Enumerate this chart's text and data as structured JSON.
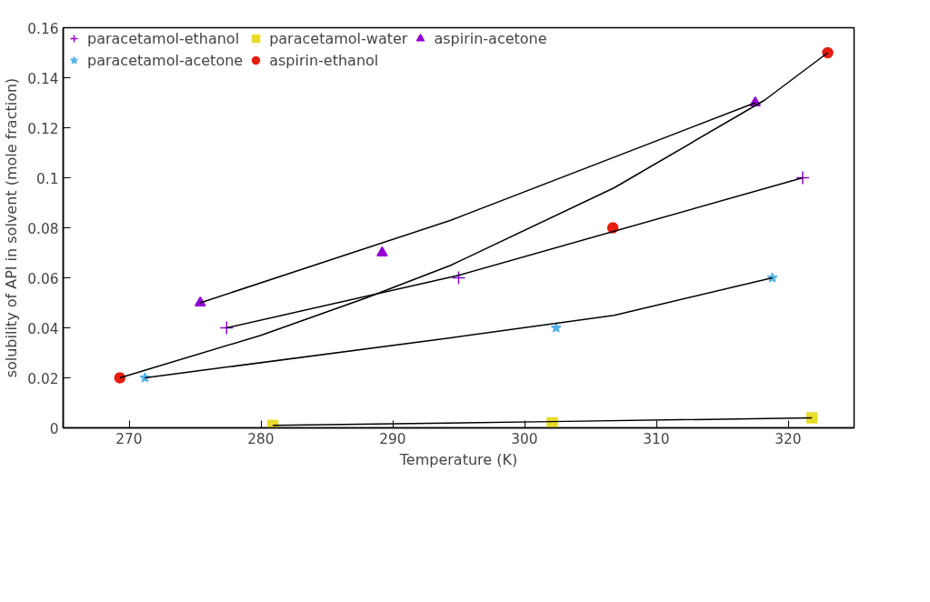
{
  "chart_data": {
    "type": "scatter",
    "xlabel": "Temperature (K)",
    "ylabel": "solubility of API in solvent (mole fraction)",
    "xlim": [
      265,
      325
    ],
    "xticks": [
      270,
      280,
      290,
      300,
      310,
      320
    ],
    "ylim": [
      0,
      0.16
    ],
    "yticks": [
      0,
      0.02,
      0.04,
      0.06,
      0.08,
      0.1,
      0.12,
      0.14,
      0.16
    ],
    "grid": false,
    "legend": "top left",
    "series": [
      {
        "name": "paracetamol-ethanol",
        "color": "#9400d3",
        "marker": "cross",
        "x": [
          277.4,
          295.0,
          321.1
        ],
        "values": [
          0.04,
          0.06,
          0.1
        ]
      },
      {
        "name": "paracetamol-acetone",
        "color": "#56b4e9",
        "marker": "star",
        "x": [
          271.2,
          302.4,
          318.8
        ],
        "values": [
          0.02,
          0.04,
          0.06
        ]
      },
      {
        "name": "paracetamol-water",
        "color": "#e8dc2a",
        "marker": "square",
        "x": [
          280.9,
          302.1,
          321.8
        ],
        "values": [
          0.001,
          0.002,
          0.004
        ]
      },
      {
        "name": "aspirin-ethanol",
        "color": "#e51e10",
        "marker": "circle",
        "x": [
          269.3,
          306.7,
          323.0
        ],
        "values": [
          0.02,
          0.08,
          0.15
        ]
      },
      {
        "name": "aspirin-acetone",
        "color": "#9400d3",
        "marker": "triangle",
        "x": [
          275.4,
          289.2,
          317.5
        ],
        "values": [
          0.05,
          0.07,
          0.13
        ]
      },
      {
        "type": "line",
        "color": "#000000",
        "marker": "none",
        "x": [
          277.4,
          295.0,
          321.1
        ],
        "values": [
          0.04,
          0.061,
          0.1
        ]
      },
      {
        "type": "line",
        "color": "#000000",
        "marker": "none",
        "x": [
          271.2,
          294.4,
          306.8,
          318.8
        ],
        "values": [
          0.02,
          0.036,
          0.045,
          0.06
        ]
      },
      {
        "type": "line",
        "color": "#000000",
        "marker": "none",
        "x": [
          280.9,
          302.0,
          321.8
        ],
        "values": [
          0.001,
          0.0025,
          0.004
        ]
      },
      {
        "type": "line",
        "color": "#000000",
        "marker": "none",
        "x": [
          269.3,
          280.0,
          288.0,
          294.4,
          306.8,
          318.2,
          323.0
        ],
        "values": [
          0.02,
          0.037,
          0.052,
          0.065,
          0.096,
          0.131,
          0.15
        ]
      },
      {
        "type": "line",
        "color": "#000000",
        "marker": "none",
        "x": [
          275.4,
          294.4,
          317.5
        ],
        "values": [
          0.05,
          0.083,
          0.13
        ]
      }
    ]
  }
}
